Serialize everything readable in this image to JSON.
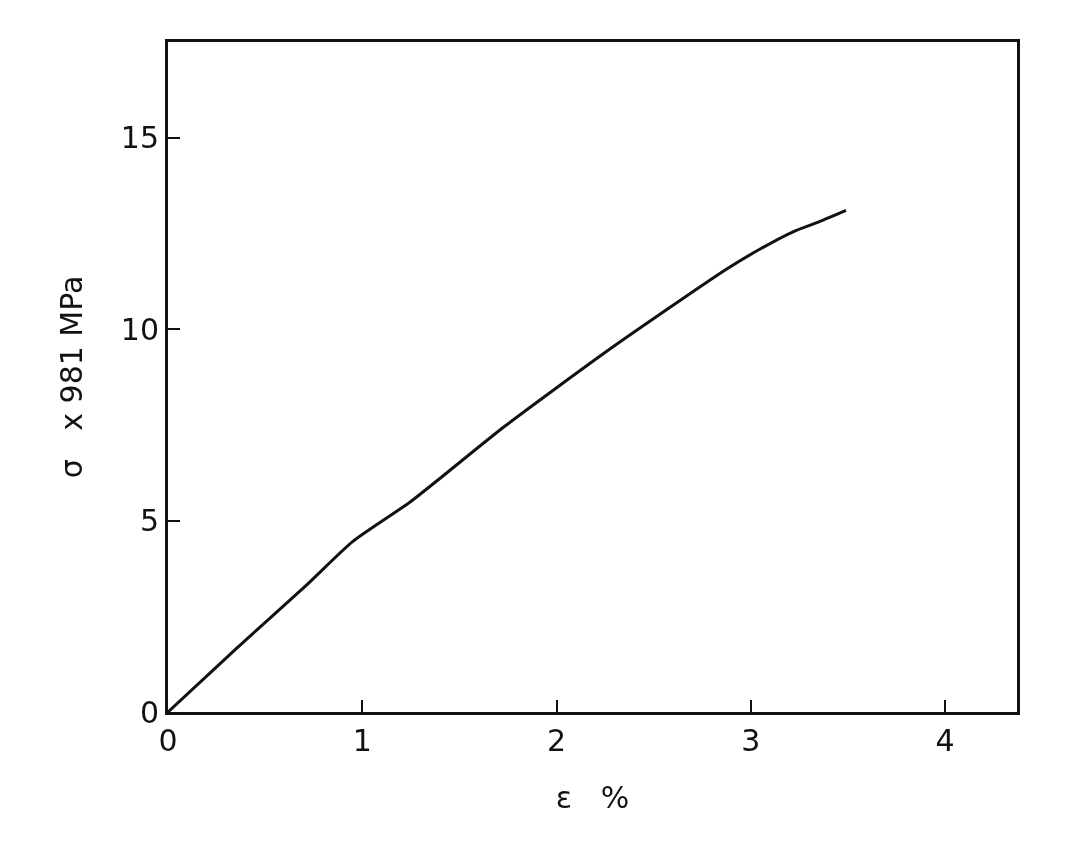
{
  "chart_data": {
    "type": "line",
    "xlabel": "ε   %",
    "ylabel": "σ   x 981 MPa",
    "x": [
      0,
      0.35,
      0.71,
      0.95,
      1.25,
      1.73,
      2.28,
      2.87,
      3.05,
      3.22,
      3.35,
      3.49
    ],
    "values": [
      0,
      1.65,
      3.3,
      4.45,
      5.5,
      7.45,
      9.5,
      11.55,
      12.1,
      12.55,
      12.8,
      13.1
    ],
    "color": "#111111",
    "marker": "none",
    "line_style": "solid",
    "xlim": [
      0,
      4.37
    ],
    "xticks": [
      0,
      1,
      2,
      3,
      4
    ],
    "ylim": [
      0,
      17.5
    ],
    "yticks": [
      0,
      5,
      10,
      15
    ],
    "grid": false,
    "legend": false
  }
}
